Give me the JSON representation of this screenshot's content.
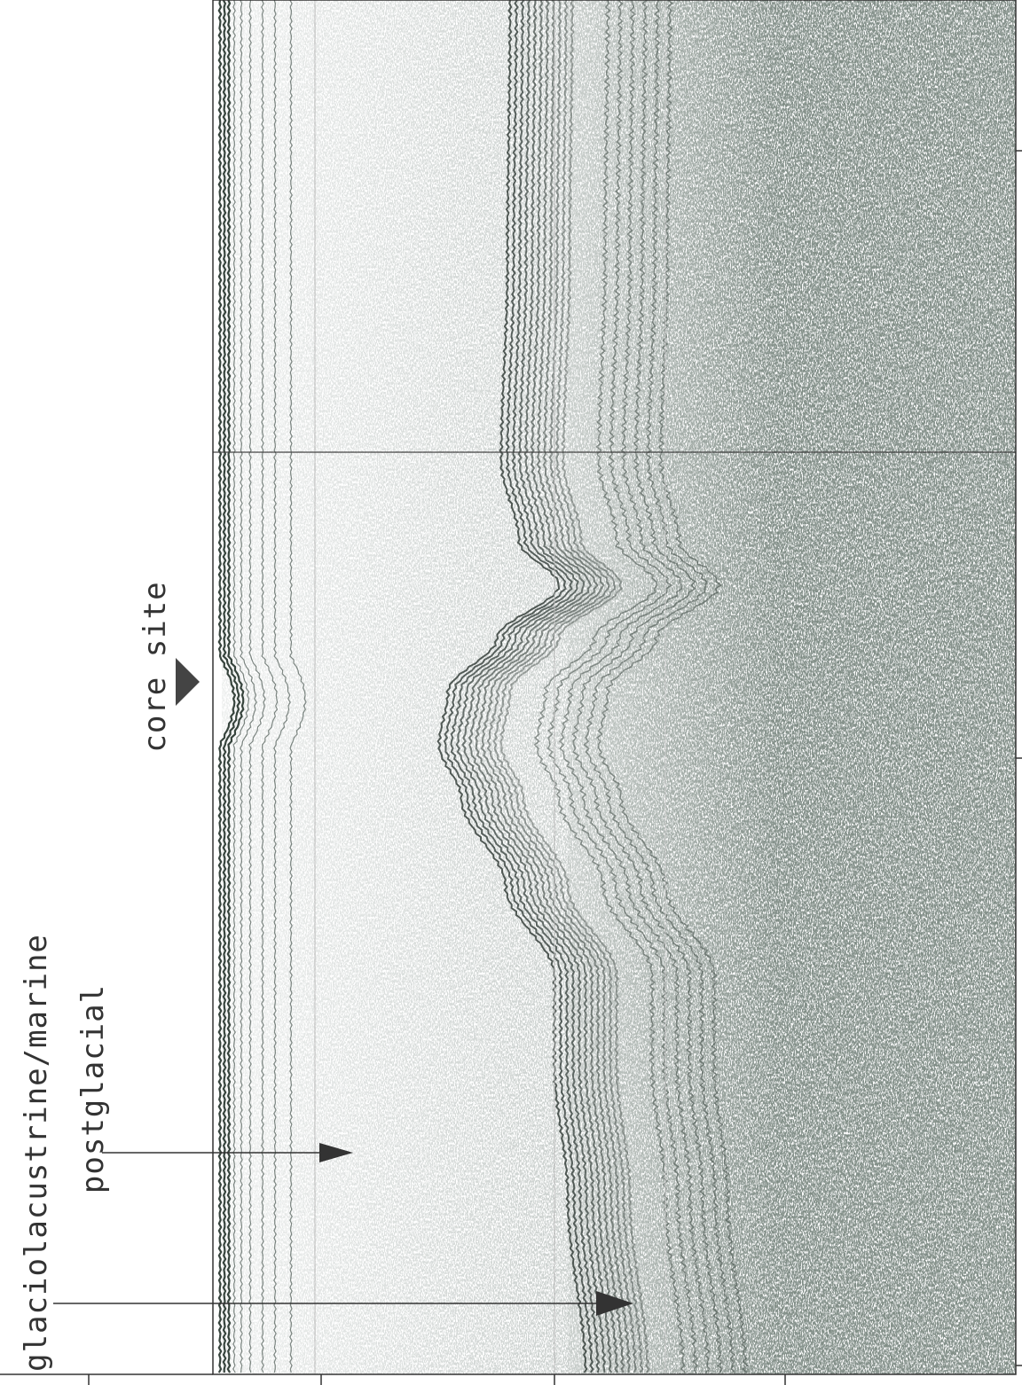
{
  "annotations": {
    "glaciolacustrine": "glaciolacustrine/marine",
    "postglacial": "postglacial",
    "core_site": "core site"
  }
}
